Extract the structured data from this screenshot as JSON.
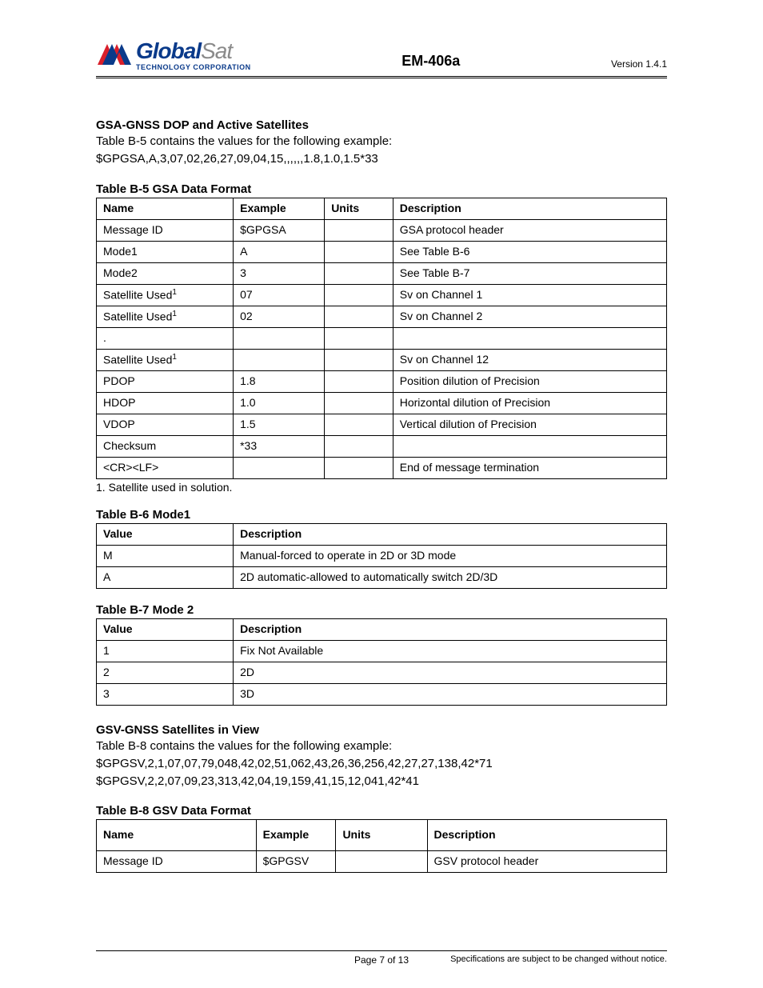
{
  "header": {
    "logo_global": "Global",
    "logo_sat": "Sat",
    "logo_sub": "TECHNOLOGY CORPORATION",
    "center": "EM-406a",
    "version": "Version  1.4.1",
    "logo_colors": {
      "global": "#0a3a8a",
      "sat": "#8a8a8a",
      "mark_red": "#d91f2a",
      "mark_blue": "#0a3a8a"
    }
  },
  "gsa": {
    "heading": "GSA-GNSS DOP and Active Satellites",
    "intro": "Table B-5 contains the values for the following example:",
    "example": "$GPGSA,A,3,07,02,26,27,09,04,15,,,,,,1.8,1.0,1.5*33"
  },
  "table_b5": {
    "caption": "Table B-5 GSA Data Format",
    "columns": [
      "Name",
      "Example",
      "Units",
      "Description"
    ],
    "rows": [
      [
        "Message ID",
        "$GPGSA",
        "",
        "GSA protocol header"
      ],
      [
        "Mode1",
        "A",
        "",
        "See Table B-6"
      ],
      [
        "Mode2",
        "3",
        "",
        "See Table B-7"
      ],
      [
        "Satellite Used<sup>1</sup>",
        "07",
        "",
        "Sv on Channel 1"
      ],
      [
        "Satellite Used<sup>1</sup>",
        "02",
        "",
        "Sv on Channel 2"
      ],
      [
        ".",
        "",
        "",
        ""
      ],
      [
        "Satellite Used<sup>1</sup>",
        "",
        "",
        "Sv on Channel 12"
      ],
      [
        "PDOP",
        "1.8",
        "",
        "Position dilution of Precision"
      ],
      [
        "HDOP",
        "1.0",
        "",
        "Horizontal dilution of Precision"
      ],
      [
        "VDOP",
        "1.5",
        "",
        "Vertical dilution of Precision"
      ],
      [
        "Checksum",
        "*33",
        "",
        ""
      ],
      [
        "<CR><LF>",
        "",
        "",
        "End of message termination"
      ]
    ],
    "footnote": "1. Satellite used in solution."
  },
  "table_b6": {
    "caption": "Table B-6 Mode1",
    "columns": [
      "Value",
      "Description"
    ],
    "rows": [
      [
        "M",
        "Manual-forced to operate in 2D or 3D mode"
      ],
      [
        "A",
        "2D automatic-allowed to automatically switch 2D/3D"
      ]
    ]
  },
  "table_b7": {
    "caption": "Table B-7 Mode 2",
    "columns": [
      "Value",
      "Description"
    ],
    "rows": [
      [
        "1",
        "Fix Not Available"
      ],
      [
        "2",
        "2D"
      ],
      [
        "3",
        "3D"
      ]
    ]
  },
  "gsv": {
    "heading": "GSV-GNSS Satellites in View",
    "intro": "Table B-8 contains the values for the following example:",
    "line1": "$GPGSV,2,1,07,07,79,048,42,02,51,062,43,26,36,256,42,27,27,138,42*71",
    "line2": "$GPGSV,2,2,07,09,23,313,42,04,19,159,41,15,12,041,42*41"
  },
  "table_b8": {
    "caption": "Table B-8 GSV Data Format",
    "columns": [
      "Name",
      "Example",
      "Units",
      "Description"
    ],
    "rows": [
      [
        "Message ID",
        "$GPGSV",
        "",
        "GSV protocol header"
      ]
    ]
  },
  "footer": {
    "page": "Page 7 of 13",
    "note": "Specifications are subject to be changed without notice."
  }
}
